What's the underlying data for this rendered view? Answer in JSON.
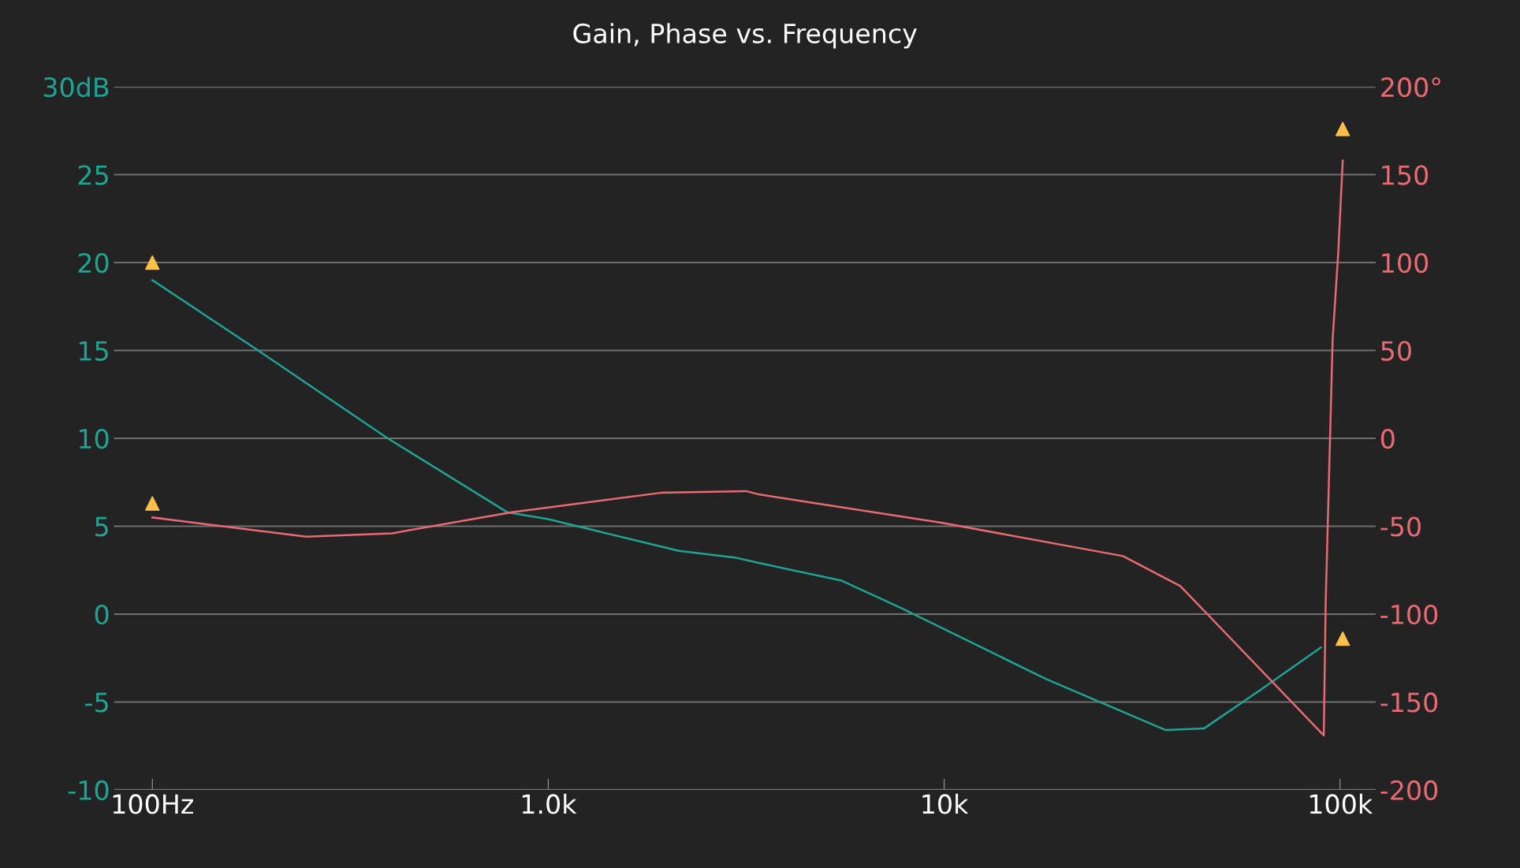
{
  "chart_data": {
    "type": "line",
    "title": "Gain, Phase vs. Frequency",
    "log": "x",
    "grid": "y",
    "xlim": [
      80,
      123000
    ],
    "xticks": [
      {
        "value": 100,
        "label": "100Hz"
      },
      {
        "value": 1000,
        "label": "1.0k"
      },
      {
        "value": 10000,
        "label": "10k"
      },
      {
        "value": 100000,
        "label": "100k"
      }
    ],
    "ylim": [
      -10,
      30
    ],
    "yticks": [
      -10,
      -5,
      0,
      5,
      10,
      15,
      20,
      25,
      {
        "value": 30,
        "label": "30dB"
      }
    ],
    "y2lim": [
      -200,
      200
    ],
    "y2ticks": [
      -200,
      -150,
      -100,
      -50,
      0,
      50,
      100,
      150,
      {
        "value": 200,
        "label": "200°"
      }
    ],
    "series": [
      {
        "color": "#1fa393",
        "x": [
          100,
          185,
          393,
          787,
          1000,
          2140,
          2990,
          3420,
          5510,
          7870,
          18100,
          36300,
          45400,
          63100,
          89500
        ],
        "values": [
          19.0,
          15,
          10,
          5.8,
          5.4,
          3.6,
          3.2,
          2.9,
          1.9,
          0.3,
          -3.7,
          -6.6,
          -6.5,
          -4.3,
          -1.9
        ]
      },
      {
        "color": "#e86a72",
        "axis": "y2",
        "x": [
          100,
          245,
          404,
          809,
          1920,
          3160,
          3420,
          9840,
          28300,
          39500,
          91000,
          92000,
          95800,
          99000,
          101600
        ],
        "values": [
          -45,
          -56,
          -54,
          -42,
          -31,
          -30,
          -32,
          -48,
          -67,
          -84,
          -169,
          -94,
          56,
          106,
          158
        ]
      },
      {
        "type": "scatter",
        "marker": "triangle",
        "color": "#ffc04a",
        "x": [
          100,
          101600
        ],
        "values": [
          20,
          -1.4
        ]
      },
      {
        "type": "scatter",
        "marker": "triangle",
        "color": "#ffc04a",
        "axis": "y2",
        "x": [
          100,
          101600
        ],
        "values": [
          -37,
          176
        ]
      }
    ]
  }
}
